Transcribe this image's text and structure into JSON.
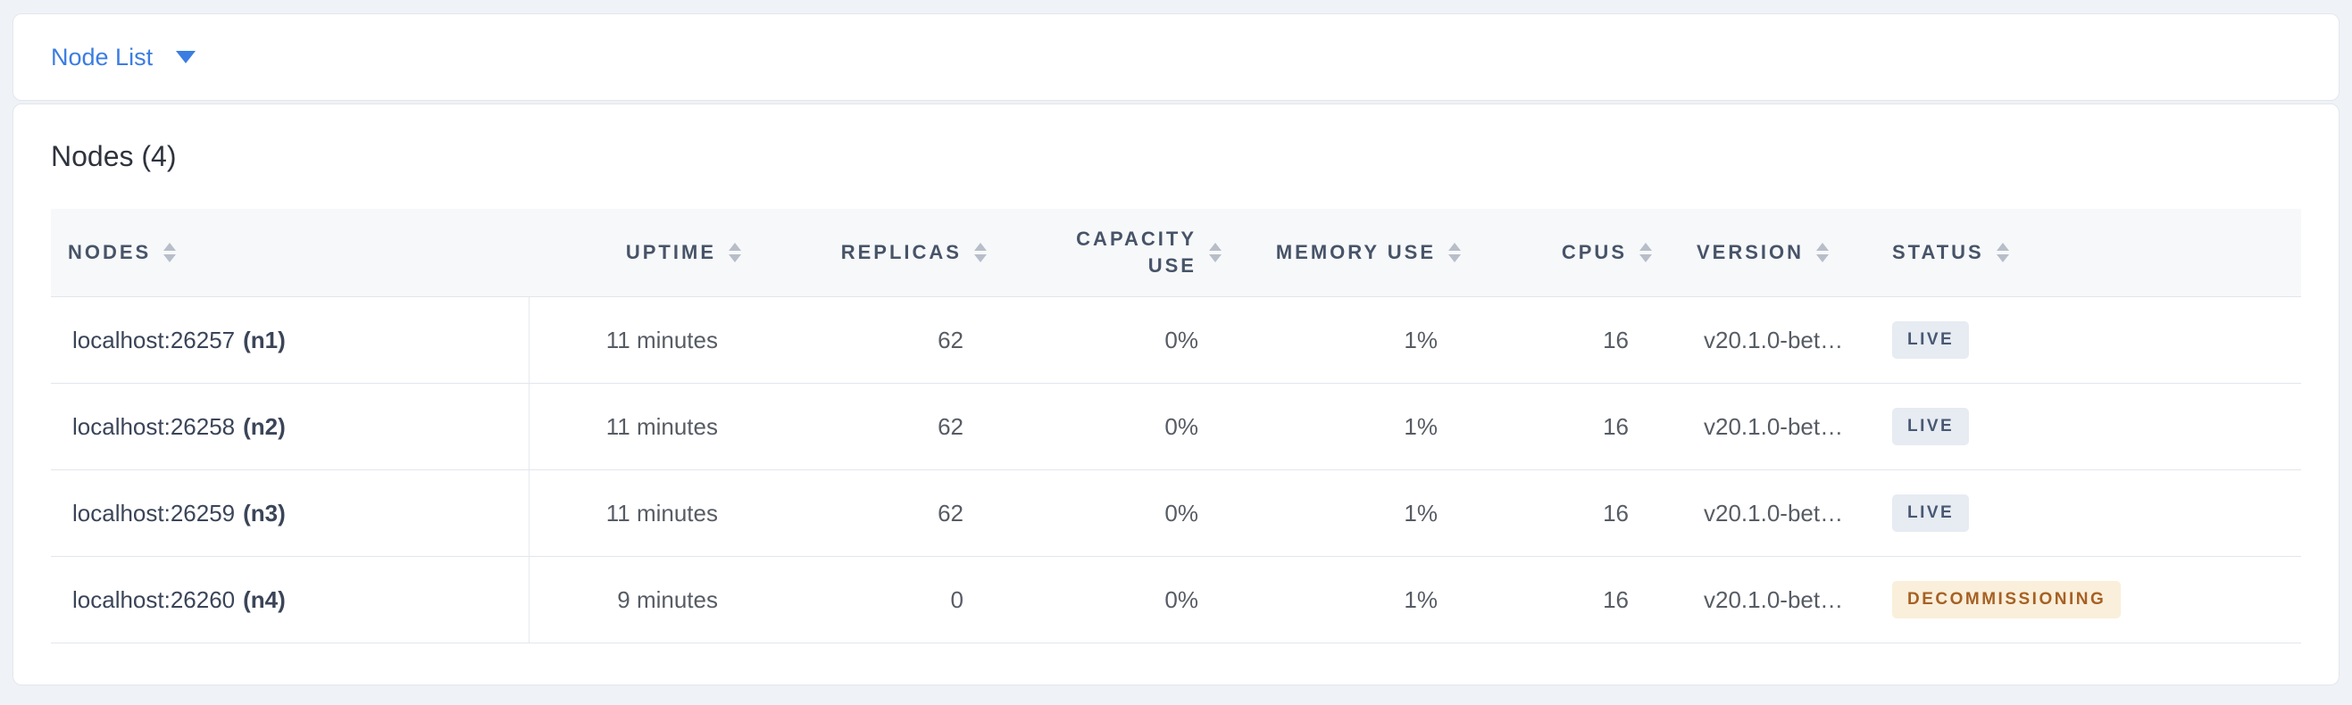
{
  "toolbar": {
    "dropdown": {
      "label": "Node List"
    }
  },
  "content": {
    "title": "Nodes (4)",
    "table": {
      "columns": [
        {
          "label": "NODES"
        },
        {
          "label": "UPTIME"
        },
        {
          "label": "REPLICAS"
        },
        {
          "label": "CAPACITY USE"
        },
        {
          "label": "MEMORY USE"
        },
        {
          "label": "CPUS"
        },
        {
          "label": "VERSION"
        },
        {
          "label": "STATUS"
        }
      ],
      "rows": [
        {
          "address": "localhost:26257",
          "node_id": "(n1)",
          "uptime": "11 minutes",
          "replicas": "62",
          "capacity_use": "0%",
          "memory_use": "1%",
          "cpus": "16",
          "version": "v20.1.0-bet…",
          "status": "LIVE",
          "status_type": "live"
        },
        {
          "address": "localhost:26258",
          "node_id": "(n2)",
          "uptime": "11 minutes",
          "replicas": "62",
          "capacity_use": "0%",
          "memory_use": "1%",
          "cpus": "16",
          "version": "v20.1.0-bet…",
          "status": "LIVE",
          "status_type": "live"
        },
        {
          "address": "localhost:26259",
          "node_id": "(n3)",
          "uptime": "11 minutes",
          "replicas": "62",
          "capacity_use": "0%",
          "memory_use": "1%",
          "cpus": "16",
          "version": "v20.1.0-bet…",
          "status": "LIVE",
          "status_type": "live"
        },
        {
          "address": "localhost:26260",
          "node_id": "(n4)",
          "uptime": "9 minutes",
          "replicas": "0",
          "capacity_use": "0%",
          "memory_use": "1%",
          "cpus": "16",
          "version": "v20.1.0-bet…",
          "status": "DECOMMISSIONING",
          "status_type": "decommissioning"
        }
      ]
    }
  },
  "colors": {
    "accent": "#3b7de2",
    "page_background": "#eff2f6",
    "header_text": "#475468",
    "live_badge_bg": "#e7ebf2",
    "live_badge_text": "#475872",
    "decommissioning_badge_bg": "#f9efdb",
    "decommissioning_badge_text": "#a76023"
  }
}
